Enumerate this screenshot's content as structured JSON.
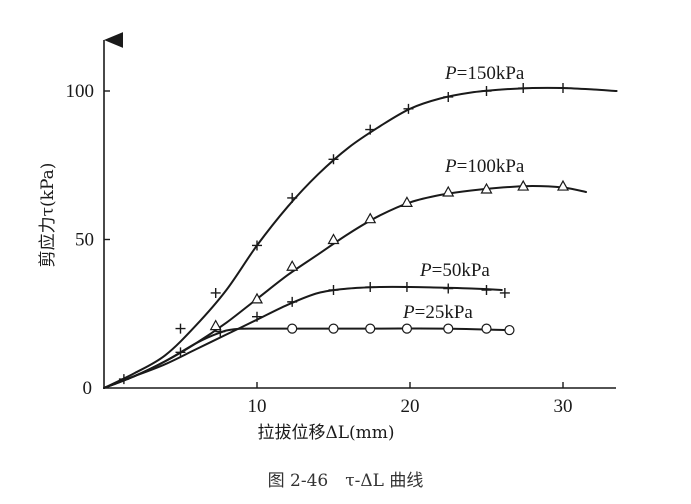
{
  "chart_data": {
    "type": "line",
    "xlabel": "拉拔位移ΔL(mm)",
    "ylabel": "剪应力τ(kPa)",
    "xlim": [
      0,
      35
    ],
    "ylim": [
      0,
      115
    ],
    "xticks": [
      10,
      20,
      30
    ],
    "yticks": [
      50,
      100
    ],
    "origin_label": "0",
    "grid": false,
    "series": [
      {
        "name": "P=150kPa",
        "marker": "plus",
        "curve": [
          [
            0,
            0
          ],
          [
            2,
            5
          ],
          [
            4,
            11
          ],
          [
            6,
            21
          ],
          [
            8,
            33
          ],
          [
            10,
            48
          ],
          [
            12,
            61
          ],
          [
            14,
            72
          ],
          [
            16,
            81
          ],
          [
            18,
            88
          ],
          [
            20,
            94
          ],
          [
            22,
            97.5
          ],
          [
            24,
            99.5
          ],
          [
            26,
            100.5
          ],
          [
            28,
            101
          ],
          [
            30,
            101
          ],
          [
            32,
            100.5
          ],
          [
            33.5,
            100
          ]
        ],
        "points": [
          [
            1.3,
            3
          ],
          [
            5,
            20
          ],
          [
            7.3,
            32
          ],
          [
            10,
            48
          ],
          [
            12.3,
            64
          ],
          [
            15,
            77
          ],
          [
            17.4,
            87
          ],
          [
            19.9,
            94
          ],
          [
            22.5,
            98
          ],
          [
            25,
            100
          ],
          [
            27.4,
            101
          ],
          [
            30,
            101
          ]
        ]
      },
      {
        "name": "P=100kPa",
        "marker": "triangle",
        "curve": [
          [
            0,
            0
          ],
          [
            2,
            4
          ],
          [
            4,
            9
          ],
          [
            6,
            15
          ],
          [
            8,
            22
          ],
          [
            10,
            30
          ],
          [
            12,
            38
          ],
          [
            14,
            45
          ],
          [
            16,
            52
          ],
          [
            18,
            58
          ],
          [
            20,
            62.5
          ],
          [
            22,
            65
          ],
          [
            24,
            66.5
          ],
          [
            26,
            67.5
          ],
          [
            28,
            68
          ],
          [
            30,
            67.5
          ],
          [
            31.5,
            66
          ]
        ],
        "points": [
          [
            7.3,
            21
          ],
          [
            10,
            30
          ],
          [
            12.3,
            41
          ],
          [
            15,
            50
          ],
          [
            17.4,
            57
          ],
          [
            19.8,
            62.5
          ],
          [
            22.5,
            66
          ],
          [
            25,
            67
          ],
          [
            27.4,
            68
          ],
          [
            30,
            68
          ]
        ]
      },
      {
        "name": "P=50kPa",
        "marker": "plus",
        "curve": [
          [
            0,
            0
          ],
          [
            2,
            4
          ],
          [
            4,
            8
          ],
          [
            6,
            13
          ],
          [
            8,
            18
          ],
          [
            10,
            23
          ],
          [
            12,
            28
          ],
          [
            14,
            32
          ],
          [
            16,
            33.5
          ],
          [
            18,
            34
          ],
          [
            20,
            34
          ],
          [
            22,
            33.8
          ],
          [
            24,
            33.5
          ],
          [
            26,
            33
          ]
        ],
        "points": [
          [
            5,
            12
          ],
          [
            7.6,
            19
          ],
          [
            10,
            24
          ],
          [
            12.3,
            29
          ],
          [
            15,
            33
          ],
          [
            17.4,
            34
          ],
          [
            19.8,
            34
          ],
          [
            22.5,
            33.5
          ],
          [
            25,
            33
          ],
          [
            26.2,
            32
          ]
        ]
      },
      {
        "name": "P=25kPa",
        "marker": "circle",
        "curve": [
          [
            0,
            0
          ],
          [
            2,
            4
          ],
          [
            4,
            9
          ],
          [
            6,
            15
          ],
          [
            7.5,
            18.5
          ],
          [
            8.5,
            19.8
          ],
          [
            10,
            20
          ],
          [
            14,
            20
          ],
          [
            18,
            20
          ],
          [
            22,
            20
          ],
          [
            26.5,
            19.5
          ]
        ],
        "points": [
          [
            12.3,
            20
          ],
          [
            15,
            20
          ],
          [
            17.4,
            20
          ],
          [
            19.8,
            20
          ],
          [
            22.5,
            20
          ],
          [
            25,
            20
          ],
          [
            26.5,
            19.5
          ]
        ]
      }
    ],
    "caption": "图 2-46　τ-ΔL 曲线"
  }
}
